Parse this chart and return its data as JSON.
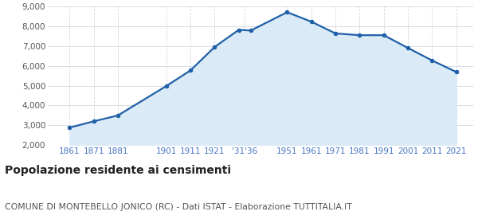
{
  "years": [
    1861,
    1871,
    1881,
    1901,
    1911,
    1921,
    1931,
    1936,
    1951,
    1961,
    1971,
    1981,
    1991,
    2001,
    2011,
    2021
  ],
  "population": [
    2878,
    3196,
    3494,
    4981,
    5771,
    6957,
    7826,
    7795,
    8720,
    8242,
    7647,
    7557,
    7557,
    6910,
    6276,
    5694
  ],
  "xtick_positions": [
    1861,
    1871,
    1881,
    1901,
    1911,
    1921,
    1933.5,
    1951,
    1961,
    1971,
    1981,
    1991,
    2001,
    2011,
    2021
  ],
  "xtick_labels": [
    "1861",
    "1871",
    "1881",
    "1901",
    "1911",
    "1921",
    "'31'36",
    "1951",
    "1961",
    "1971",
    "1981",
    "1991",
    "2001",
    "2011",
    "2021"
  ],
  "ylim": [
    2000,
    9000
  ],
  "yticks": [
    2000,
    3000,
    4000,
    5000,
    6000,
    7000,
    8000,
    9000
  ],
  "xlim_left": 1852,
  "xlim_right": 2028,
  "line_color": "#2060a8",
  "fill_color": "#daeaf7",
  "marker_color": "#2060a8",
  "grid_color": "#d0d8e0",
  "bg_color": "#ffffff",
  "title": "Popolazione residente ai censimenti",
  "subtitle": "COMUNE DI MONTEBELLO JONICO (RC) - Dati ISTAT - Elaborazione TUTTITALIA.IT",
  "title_fontsize": 10,
  "subtitle_fontsize": 7.8,
  "tick_fontsize": 7.5,
  "title_color": "#222222",
  "subtitle_color": "#555555",
  "xtick_color": "#4472c4",
  "ytick_color": "#555555"
}
